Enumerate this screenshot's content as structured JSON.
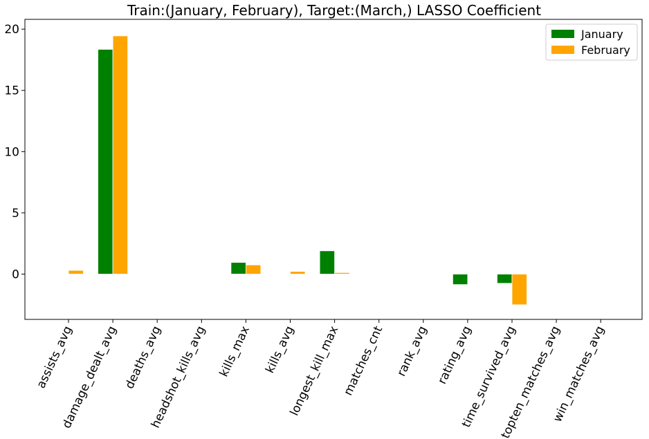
{
  "chart_data": {
    "type": "bar",
    "title": "Train:(January, February), Target:(March,) LASSO Coefficient",
    "xlabel": "",
    "ylabel": "",
    "ylim": [
      -3.7,
      20.8
    ],
    "yticks": [
      0,
      5,
      10,
      15,
      20
    ],
    "categories": [
      "assists_avg",
      "damage_dealt_avg",
      "deaths_avg",
      "headshot_kills_avg",
      "kills_max",
      "kills_avg",
      "longest_kill_max",
      "matches_cnt",
      "rank_avg",
      "rating_avg",
      "time_survived_avg",
      "topten_matches_avg",
      "win_matches_avg"
    ],
    "series": [
      {
        "name": "January",
        "color": "#008000",
        "values": [
          0,
          18.35,
          0,
          0,
          0.95,
          0,
          1.9,
          0,
          0,
          -0.85,
          -0.75,
          0,
          0
        ]
      },
      {
        "name": "February",
        "color": "#FFA500",
        "values": [
          0.3,
          19.45,
          0,
          0,
          0.75,
          0.22,
          0.12,
          0,
          0,
          0,
          -2.5,
          0,
          0
        ]
      }
    ],
    "legend_position": "top-right",
    "grid": false
  }
}
